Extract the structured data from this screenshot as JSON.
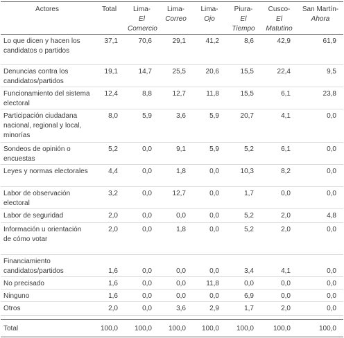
{
  "table": {
    "header": [
      {
        "place": "Actores"
      },
      {
        "place": "Total"
      },
      {
        "place": "Lima-",
        "paper": "El Comercio"
      },
      {
        "place": "Lima-",
        "paper": "Correo"
      },
      {
        "place": "Lima-",
        "paper": "Ojo"
      },
      {
        "place": "Piura-",
        "paper": "El Tiempo"
      },
      {
        "place": "Cusco-",
        "paper": "El Matutino"
      },
      {
        "place": "San Martín-",
        "paper": "Ahora"
      }
    ],
    "rows": [
      [
        "Lo que dicen y hacen los candidatos o partidos",
        "37,1",
        "70,6",
        "29,1",
        "41,2",
        "8,6",
        "42,9",
        "61,9"
      ],
      [
        "Denuncias contra los candidatos/partidos",
        "19,1",
        "14,7",
        "25,5",
        "20,6",
        "15,5",
        "22,4",
        "9,5"
      ],
      [
        "Funcionamiento del sistema electoral",
        "12,4",
        "8,8",
        "12,7",
        "11,8",
        "15,5",
        "6,1",
        "23,8"
      ],
      [
        "Participación ciudadana nacional, regional y local, minorías",
        "8,0",
        "5,9",
        "3,6",
        "5,9",
        "20,7",
        "4,1",
        "0,0"
      ],
      [
        "Sondeos de opinión o encuestas",
        "5,2",
        "0,0",
        "9,1",
        "5,9",
        "5,2",
        "6,1",
        "0,0"
      ],
      [
        "Leyes y normas electorales",
        "4,4",
        "0,0",
        "1,8",
        "0,0",
        "10,3",
        "8,2",
        "0,0"
      ],
      [
        "Labor de observación electoral",
        "3,2",
        "0,0",
        "12,7",
        "0,0",
        "1,7",
        "0,0",
        "0,0"
      ],
      [
        "Labor de seguridad",
        "2,0",
        "0,0",
        "0,0",
        "0,0",
        "5,2",
        "2,0",
        "4,8"
      ],
      [
        "Información u orientación de cómo votar",
        "2,0",
        "0,0",
        "1,8",
        "0,0",
        "5,2",
        "2,0",
        "0,0"
      ],
      [
        "Financiamiento candidatos/partidos",
        "1,6",
        "0,0",
        "0,0",
        "0,0",
        "3,4",
        "4,1",
        "0,0"
      ],
      [
        "No precisado",
        "1,6",
        "0,0",
        "0,0",
        "11,8",
        "0,0",
        "0,0",
        "0,0"
      ],
      [
        "Ninguno",
        "1,6",
        "0,0",
        "0,0",
        "0,0",
        "6,9",
        "0,0",
        "0,0"
      ],
      [
        "Otros",
        "2,0",
        "0,0",
        "3,6",
        "2,9",
        "1,7",
        "2,0",
        "0,0"
      ]
    ],
    "total": [
      "Total",
      "100,0",
      "100,0",
      "100,0",
      "100,0",
      "100,0",
      "100,0",
      "100,0"
    ]
  }
}
